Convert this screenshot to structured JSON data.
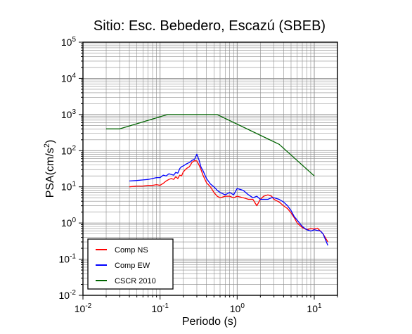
{
  "chart_data": {
    "type": "line",
    "title": "Sitio: Esc. Bebedero, Escazú (SBEB)",
    "xlabel": "Periodo (s)",
    "ylabel": "PSA(cm/s",
    "ylabel_sup": "2",
    "ylabel_close": ")",
    "x_scale": "log",
    "y_scale": "log",
    "xlim": [
      0.01,
      20
    ],
    "ylim": [
      0.01,
      100000
    ],
    "grid": true,
    "legend_position": "bottom-left",
    "x_ticks": [
      {
        "value": 0.01,
        "base": "10",
        "exp": "-2"
      },
      {
        "value": 0.1,
        "base": "10",
        "exp": "-1"
      },
      {
        "value": 1,
        "base": "10",
        "exp": "0"
      },
      {
        "value": 10,
        "base": "10",
        "exp": "1"
      }
    ],
    "y_ticks": [
      {
        "value": 0.01,
        "base": "10",
        "exp": "-2"
      },
      {
        "value": 0.1,
        "base": "10",
        "exp": "-1"
      },
      {
        "value": 1,
        "base": "10",
        "exp": "0"
      },
      {
        "value": 10,
        "base": "10",
        "exp": "1"
      },
      {
        "value": 100,
        "base": "10",
        "exp": "2"
      },
      {
        "value": 1000,
        "base": "10",
        "exp": "3"
      },
      {
        "value": 10000,
        "base": "10",
        "exp": "4"
      },
      {
        "value": 100000,
        "base": "10",
        "exp": "5"
      }
    ],
    "series": [
      {
        "name": "Comp NS",
        "color": "#ff0000",
        "x": [
          0.04,
          0.05,
          0.06,
          0.07,
          0.08,
          0.09,
          0.1,
          0.11,
          0.12,
          0.13,
          0.14,
          0.15,
          0.16,
          0.17,
          0.18,
          0.19,
          0.2,
          0.22,
          0.24,
          0.26,
          0.28,
          0.3,
          0.32,
          0.34,
          0.36,
          0.4,
          0.45,
          0.5,
          0.55,
          0.6,
          0.7,
          0.8,
          0.9,
          1.0,
          1.2,
          1.4,
          1.6,
          1.8,
          2.0,
          2.2,
          2.5,
          2.8,
          3.0,
          3.5,
          4.0,
          4.5,
          5.0,
          5.5,
          6.0,
          7.0,
          8.0,
          9.0,
          10.0,
          11.0,
          12.0,
          13.0,
          15.0
        ],
        "y": [
          10,
          10.5,
          10.5,
          11,
          11,
          11.5,
          11,
          12.5,
          14.5,
          16,
          17,
          16,
          19,
          17,
          21,
          20,
          26,
          32,
          36,
          48,
          53,
          52,
          40,
          30,
          21,
          13,
          10,
          7,
          5.5,
          5,
          5.5,
          5.5,
          5,
          5.5,
          5,
          4.5,
          4.5,
          3,
          4.5,
          5.5,
          6,
          5.5,
          4.5,
          3.8,
          3,
          2.5,
          1.9,
          1.4,
          1.0,
          0.75,
          0.65,
          0.7,
          0.68,
          0.72,
          0.6,
          0.5,
          0.3
        ]
      },
      {
        "name": "Comp EW",
        "color": "#0000ff",
        "x": [
          0.04,
          0.05,
          0.06,
          0.07,
          0.08,
          0.09,
          0.1,
          0.11,
          0.12,
          0.13,
          0.14,
          0.15,
          0.16,
          0.17,
          0.18,
          0.19,
          0.2,
          0.22,
          0.24,
          0.26,
          0.28,
          0.3,
          0.32,
          0.34,
          0.36,
          0.4,
          0.45,
          0.5,
          0.55,
          0.6,
          0.7,
          0.8,
          0.9,
          1.0,
          1.2,
          1.4,
          1.6,
          1.8,
          2.0,
          2.2,
          2.5,
          2.8,
          3.0,
          3.5,
          4.0,
          4.5,
          5.0,
          5.5,
          6.0,
          7.0,
          8.0,
          9.0,
          10.0,
          11.0,
          12.0,
          13.0,
          15.0
        ],
        "y": [
          14.5,
          15,
          15.5,
          16,
          17,
          18,
          18,
          21,
          20,
          23,
          22,
          21,
          25,
          24,
          32,
          36,
          38,
          43,
          47,
          54,
          58,
          80,
          55,
          35,
          28,
          17,
          12,
          10,
          8,
          7,
          6,
          7,
          6,
          9,
          8,
          6,
          5,
          5.5,
          4.5,
          4.5,
          4.5,
          5,
          5,
          4.5,
          3.8,
          3,
          2.2,
          1.5,
          1.2,
          0.8,
          0.65,
          0.6,
          0.65,
          0.62,
          0.6,
          0.5,
          0.24
        ]
      },
      {
        "name": "CSCR 2010",
        "color": "#006400",
        "x": [
          0.02,
          0.03,
          0.125,
          0.55,
          3.5,
          10.0
        ],
        "y": [
          400,
          400,
          1000,
          1000,
          150,
          20
        ]
      }
    ]
  }
}
